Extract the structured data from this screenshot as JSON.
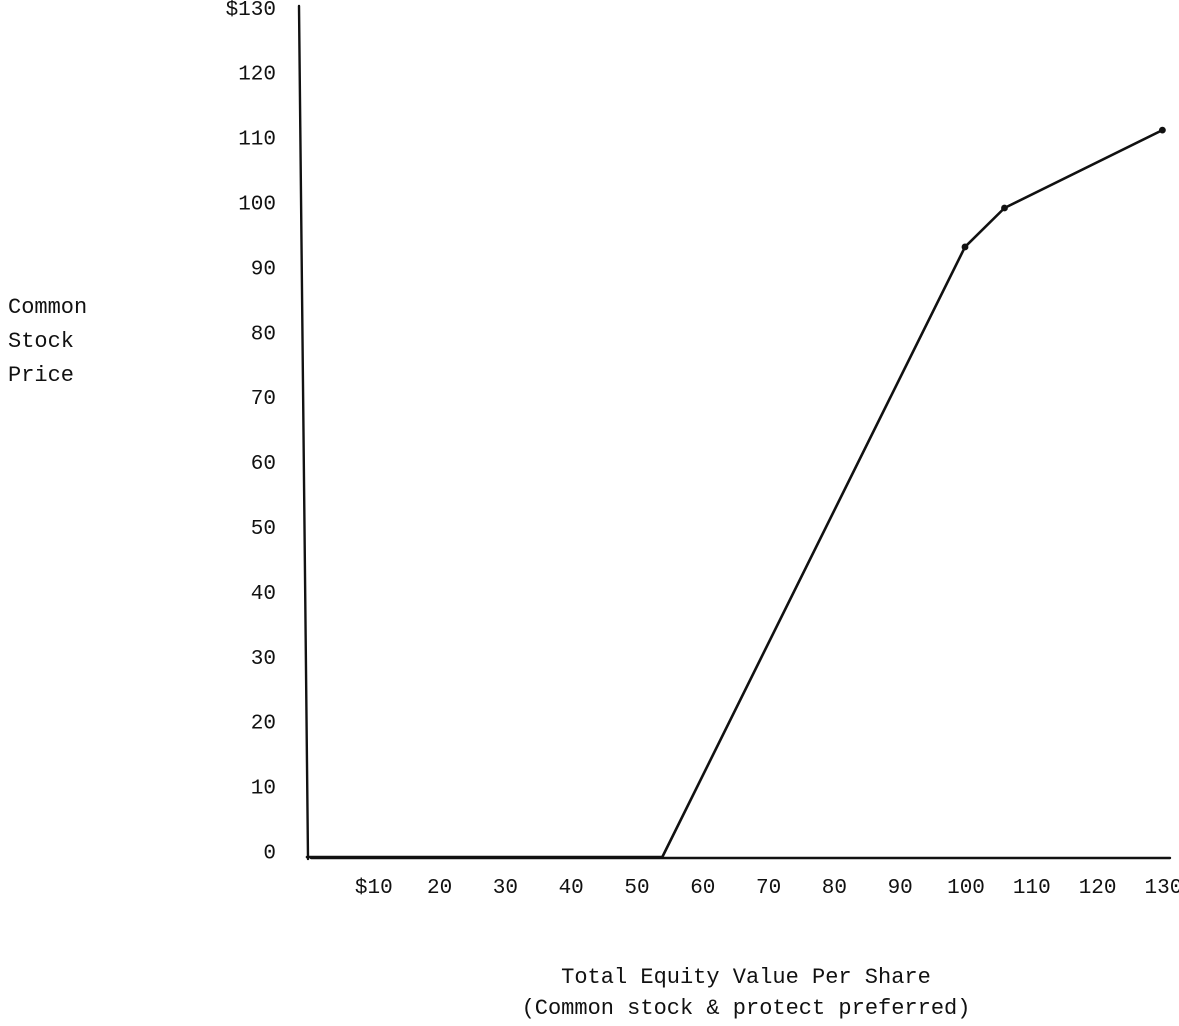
{
  "chart_data": {
    "type": "line",
    "title": "",
    "ylabel_lines": [
      "Common",
      "Stock",
      "Price"
    ],
    "xlabel_lines": [
      "Total Equity Value Per Share",
      "(Common stock & protect preferred)"
    ],
    "xlim": [
      0,
      130
    ],
    "ylim": [
      0,
      130
    ],
    "grid": false,
    "x_ticks": [
      {
        "value": 10,
        "label": "$10"
      },
      {
        "value": 20,
        "label": "20"
      },
      {
        "value": 30,
        "label": "30"
      },
      {
        "value": 40,
        "label": "40"
      },
      {
        "value": 50,
        "label": "50"
      },
      {
        "value": 60,
        "label": "60"
      },
      {
        "value": 70,
        "label": "70"
      },
      {
        "value": 80,
        "label": "80"
      },
      {
        "value": 90,
        "label": "90"
      },
      {
        "value": 100,
        "label": "100"
      },
      {
        "value": 110,
        "label": "110"
      },
      {
        "value": 120,
        "label": "120"
      },
      {
        "value": 130,
        "label": "130"
      }
    ],
    "y_ticks": [
      {
        "value": 0,
        "label": "0"
      },
      {
        "value": 10,
        "label": "10"
      },
      {
        "value": 20,
        "label": "20"
      },
      {
        "value": 30,
        "label": "30"
      },
      {
        "value": 40,
        "label": "40"
      },
      {
        "value": 50,
        "label": "50"
      },
      {
        "value": 60,
        "label": "60"
      },
      {
        "value": 70,
        "label": "70"
      },
      {
        "value": 80,
        "label": "80"
      },
      {
        "value": 90,
        "label": "90"
      },
      {
        "value": 100,
        "label": "100"
      },
      {
        "value": 110,
        "label": "110"
      },
      {
        "value": 120,
        "label": "120"
      },
      {
        "value": 130,
        "label": "$130"
      }
    ],
    "series": [
      {
        "x": [
          0,
          54,
          100,
          106,
          130
        ],
        "y": [
          0,
          0,
          94,
          100,
          112
        ]
      }
    ],
    "marked_points": [
      {
        "x": 100,
        "y": 94
      },
      {
        "x": 106,
        "y": 100
      },
      {
        "x": 130,
        "y": 112
      }
    ],
    "line_color": "#111111"
  }
}
